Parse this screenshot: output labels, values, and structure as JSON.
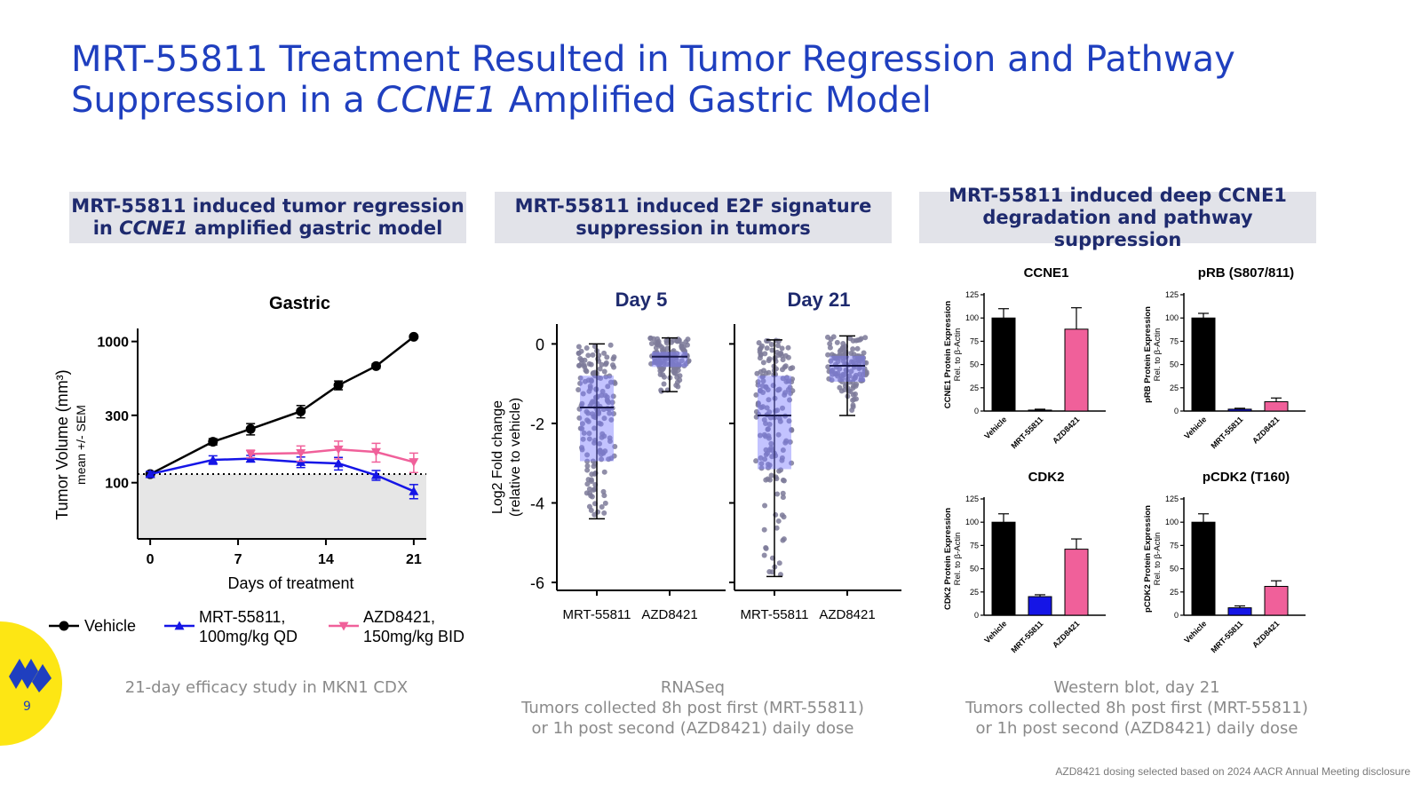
{
  "slide": {
    "title_a": "MRT-55811 Treatment Resulted in Tumor Regression and Pathway",
    "title_b": "Suppression in a ",
    "title_gene": "CCNE1",
    "title_c": " Amplified Gastric Model",
    "page_number": "9",
    "footnote": "AZD8421 dosing selected based on 2024 AACR Annual Meeting disclosure",
    "colors": {
      "title": "#1f3fbf",
      "vehicle": "#000000",
      "mrt": "#1515e6",
      "azd": "#f0609a",
      "logo": "#fde614"
    }
  },
  "panels": [
    {
      "banner_line1": "MRT-55811 induced tumor regression",
      "banner_line2_pre": "in ",
      "banner_line2_gene": "CCNE1",
      "banner_line2_post": " amplified gastric model",
      "caption_lines": [
        "21-day efficacy study in MKN1 CDX"
      ]
    },
    {
      "banner_line1": "MRT-55811 induced E2F signature",
      "banner_line2": "suppression in tumors",
      "caption_lines": [
        "RNASeq",
        "Tumors collected 8h post first (MRT-55811)",
        "or 1h post second (AZD8421) daily dose"
      ]
    },
    {
      "banner_line1": "MRT-55811 induced deep CCNE1",
      "banner_line2": "degradation and pathway suppression",
      "caption_lines": [
        "Western blot, day 21",
        "Tumors collected 8h post first (MRT-55811)",
        "or 1h post second (AZD8421) daily dose"
      ]
    }
  ],
  "chart_data": [
    {
      "type": "line",
      "title": "Gastric",
      "xlabel": "Days of treatment",
      "ylabel": "Tumor Volume (mm³)",
      "ylabel_sub": "mean +/- SEM",
      "y_scale": "log",
      "ylim": [
        40,
        1150
      ],
      "xlim": [
        -1,
        22
      ],
      "x_ticks": [
        0,
        7,
        14,
        21
      ],
      "y_ticks": [
        100,
        300,
        1000
      ],
      "reference_line": 115,
      "series": [
        {
          "name": "Vehicle",
          "color": "#000000",
          "marker": "circle",
          "x": [
            0,
            5,
            8,
            12,
            15,
            18,
            21
          ],
          "y": [
            115,
            195,
            240,
            320,
            490,
            670,
            1080
          ],
          "err": [
            5,
            10,
            22,
            32,
            35,
            25,
            30
          ]
        },
        {
          "name": "MRT-55811, 100mg/kg QD",
          "color": "#1515e6",
          "marker": "triangle-up",
          "x": [
            0,
            5,
            8,
            12,
            15,
            18,
            21
          ],
          "y": [
            115,
            145,
            148,
            140,
            137,
            113,
            87
          ],
          "err": [
            5,
            10,
            8,
            12,
            14,
            9,
            10
          ]
        },
        {
          "name": "AZD8421, 150mg/kg BID",
          "color": "#f0609a",
          "marker": "triangle-down",
          "x": [
            8,
            12,
            15,
            18,
            21
          ],
          "y": [
            160,
            162,
            172,
            165,
            140
          ],
          "err": [
            10,
            20,
            25,
            25,
            22
          ]
        }
      ],
      "legend": [
        {
          "label_a": "Vehicle",
          "label_b": "",
          "marker": "circle",
          "color": "#000000"
        },
        {
          "label_a": "MRT-55811,",
          "label_b": "100mg/kg QD",
          "marker": "triangle-up",
          "color": "#1515e6"
        },
        {
          "label_a": "AZD8421,",
          "label_b": "150mg/kg BID",
          "marker": "triangle-down",
          "color": "#f0609a"
        }
      ],
      "legend_position": "bottom"
    },
    {
      "type": "scatter",
      "chart_kind": "box-and-scatter",
      "ylabel": "Log2 Fold change",
      "ylabel_sub": "(relative to vehicle)",
      "ylim": [
        -6.2,
        0.5
      ],
      "y_ticks": [
        0,
        -2,
        -4,
        -6
      ],
      "panels": [
        {
          "title": "Day 5",
          "groups": [
            {
              "name": "MRT-55811",
              "median": -1.6,
              "q1": -2.95,
              "q3": -0.8,
              "min": -4.4,
              "max": 0.0
            },
            {
              "name": "AZD8421",
              "median": -0.32,
              "q1": -0.58,
              "q3": -0.2,
              "min": -1.2,
              "max": 0.15
            }
          ]
        },
        {
          "title": "Day 21",
          "groups": [
            {
              "name": "MRT-55811",
              "median": -1.8,
              "q1": -3.15,
              "q3": -0.8,
              "min": -5.85,
              "max": 0.1
            },
            {
              "name": "AZD8421",
              "median": -0.55,
              "q1": -0.95,
              "q3": -0.3,
              "min": -1.8,
              "max": 0.2
            }
          ]
        }
      ]
    },
    {
      "type": "bar",
      "categories": [
        "Vehicle",
        "MRT-55811",
        "AZD8421"
      ],
      "ylim": [
        0,
        125
      ],
      "y_ticks": [
        0,
        25,
        50,
        75,
        100,
        125
      ],
      "bar_colors": [
        "#000000",
        "#1515e6",
        "#f0609a"
      ],
      "ylabel_sub": "Rel. to β-Actin",
      "panels": [
        {
          "title": "CCNE1",
          "ylabel": "CCNE1 Protein Expression",
          "values": [
            100,
            1,
            88
          ],
          "err": [
            10,
            1,
            23
          ]
        },
        {
          "title": "pRB (S807/811)",
          "ylabel": "pRB Protein Expression",
          "values": [
            100,
            2,
            10
          ],
          "err": [
            5,
            1,
            4
          ]
        },
        {
          "title": "CDK2",
          "ylabel": "CDK2 Protein Expression",
          "values": [
            100,
            20,
            71
          ],
          "err": [
            9,
            2,
            11
          ]
        },
        {
          "title": "pCDK2 (T160)",
          "ylabel": "pCDK2 Protein Expression",
          "values": [
            100,
            8,
            31
          ],
          "err": [
            9,
            2,
            6
          ]
        }
      ]
    }
  ]
}
